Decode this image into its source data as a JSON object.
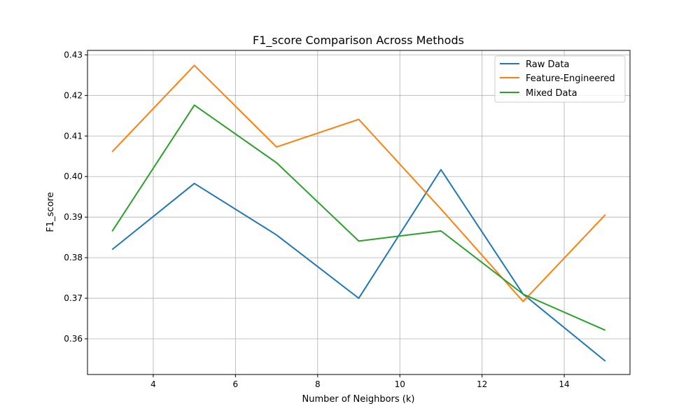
{
  "chart_data": {
    "type": "line",
    "title": "F1_score Comparison Across Methods",
    "xlabel": "Number of Neighbors (k)",
    "ylabel": "F1_score",
    "x": [
      3,
      5,
      7,
      9,
      11,
      13,
      15
    ],
    "xlim": [
      2.4,
      15.6
    ],
    "ylim": [
      0.3512,
      0.4311
    ],
    "xticks": [
      4,
      6,
      8,
      10,
      12,
      14
    ],
    "yticks": [
      0.36,
      0.37,
      0.38,
      0.39,
      0.4,
      0.41,
      0.42,
      0.43
    ],
    "ytick_labels": [
      "0.36",
      "0.37",
      "0.38",
      "0.39",
      "0.40",
      "0.41",
      "0.42",
      "0.43"
    ],
    "grid": true,
    "legend_position": "top-right",
    "series": [
      {
        "name": "Raw Data",
        "color": "#1f77b4",
        "values": [
          0.382,
          0.3983,
          0.3856,
          0.37,
          0.4017,
          0.371,
          0.3545
        ]
      },
      {
        "name": "Feature-Engineered",
        "color": "#ff7f0e",
        "values": [
          0.4061,
          0.4274,
          0.4073,
          0.4141,
          0.392,
          0.3692,
          0.3906
        ]
      },
      {
        "name": "Mixed Data",
        "color": "#2ca02c",
        "values": [
          0.3865,
          0.4176,
          0.4034,
          0.3841,
          0.3866,
          0.371,
          0.3621
        ]
      }
    ]
  }
}
